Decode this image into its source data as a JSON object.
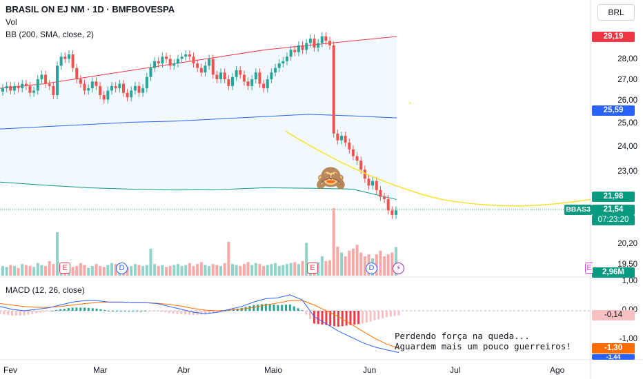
{
  "header": {
    "symbol_title": "BRASIL ON EJ NM · 1D · BMFBOVESPA",
    "vol_label": "Vol",
    "bb_label": "BB (200, SMA, close, 2)",
    "currency": "BRL"
  },
  "macd_label": "MACD (12, 26, close)",
  "annotation_lines": [
    "Perdendo força na queda...",
    "Aguardem mais um pouco guerreiros!"
  ],
  "emoji": "🙈",
  "price_axis_ticks": [
    "28,00",
    "27,00",
    "26,00",
    "25,00",
    "24,00",
    "23,00",
    "20,20",
    "19,50"
  ],
  "macd_axis_ticks": [
    "1,00",
    "0,00",
    "-1,00"
  ],
  "time_axis": [
    "Fev",
    "Mar",
    "Abr",
    "Maio",
    "Jun",
    "Jul",
    "Ago"
  ],
  "tags": {
    "bb_upper": "29,19",
    "bb_basis": "25,59",
    "bb_lower": "21,98",
    "symbol": "BBAS3",
    "last_price": "21,54",
    "countdown": "07:23:20",
    "volume": "2,96M",
    "macd_hist": "-0,14",
    "macd_signal": "-1,30",
    "macd_line": "-1,44"
  },
  "event_markers": {
    "earnings": "E",
    "dividend": "D",
    "split": "⚡"
  },
  "colors": {
    "up": "#26a69a",
    "down": "#ef5350",
    "bb_upper": "#f23645",
    "bb_basis": "#2962ff",
    "bb_lower": "#089981",
    "bb_fill": "#2196f3",
    "macd_line": "#2962ff",
    "signal_line": "#ff6d00",
    "projection": "#f7e22a"
  },
  "chart_data": [
    {
      "type": "candlestick",
      "title": "BRASIL ON EJ NM · 1D · BMFBOVESPA",
      "x_ticks": [
        "Fev",
        "Mar",
        "Abr",
        "Maio",
        "Jun",
        "Jul",
        "Ago"
      ],
      "ylim": [
        20.5,
        29.5
      ],
      "ohlc_close": [
        26.9,
        27.0,
        26.8,
        27.0,
        26.9,
        27.1,
        27.0,
        26.7,
        26.8,
        27.3,
        27.5,
        27.1,
        27.0,
        26.6,
        27.9,
        28.3,
        28.2,
        28.4,
        27.8,
        27.3,
        27.1,
        26.8,
        26.9,
        27.2,
        27.0,
        26.6,
        26.4,
        26.8,
        27.0,
        26.9,
        27.1,
        26.7,
        26.5,
        26.8,
        27.0,
        26.7,
        26.9,
        27.4,
        27.8,
        28.1,
        28.0,
        28.3,
        28.2,
        27.9,
        28.0,
        28.2,
        28.3,
        28.4,
        28.3,
        28.0,
        27.8,
        27.6,
        27.9,
        28.2,
        27.5,
        27.3,
        27.6,
        27.3,
        27.0,
        27.4,
        27.7,
        27.5,
        27.2,
        27.0,
        27.3,
        27.6,
        27.1,
        26.9,
        27.3,
        27.6,
        27.8,
        28.0,
        28.1,
        28.3,
        28.6,
        28.5,
        28.8,
        28.6,
        28.9,
        29.1,
        28.7,
        28.9,
        29.2,
        29.0,
        28.8,
        24.9,
        24.6,
        24.8,
        24.5,
        24.2,
        23.9,
        23.7,
        23.3,
        22.9,
        22.6,
        22.8,
        22.4,
        22.1,
        22.0,
        21.5,
        21.3,
        21.5
      ],
      "bollinger": {
        "upper": [
          26.9,
          27.1,
          27.4,
          27.7,
          28.0,
          28.3,
          28.6,
          28.8,
          29.0,
          29.19
        ],
        "basis": [
          25.1,
          25.2,
          25.3,
          25.4,
          25.45,
          25.55,
          25.65,
          25.75,
          25.68,
          25.59
        ],
        "lower": [
          22.75,
          22.62,
          22.5,
          22.44,
          22.4,
          22.42,
          22.5,
          22.48,
          22.44,
          21.98
        ]
      },
      "projection_curve": [
        25.0,
        24.2,
        23.5,
        22.9,
        22.4,
        22.0,
        21.8,
        21.7,
        21.7,
        21.8,
        21.98
      ]
    },
    {
      "type": "bar",
      "title": "Vol",
      "last_value": "2,96M",
      "values": [
        1.0,
        0.9,
        1.1,
        1.0,
        0.8,
        1.2,
        1.1,
        1.0,
        0.9,
        1.3,
        1.1,
        1.0,
        1.5,
        1.2,
        4.5,
        1.0,
        1.2,
        1.1,
        0.9,
        1.0,
        1.3,
        1.1,
        0.8,
        1.0,
        1.2,
        1.0,
        0.9,
        1.1,
        1.3,
        1.2,
        1.0,
        1.1,
        0.9,
        1.0,
        1.2,
        1.1,
        1.0,
        1.1,
        2.8,
        1.2,
        1.0,
        1.1,
        0.9,
        1.0,
        1.1,
        1.2,
        1.0,
        1.1,
        1.3,
        1.0,
        1.2,
        1.4,
        1.1,
        1.0,
        1.2,
        1.1,
        1.0,
        1.3,
        3.5,
        1.2,
        1.1,
        1.0,
        1.2,
        1.4,
        1.1,
        1.3,
        1.2,
        1.0,
        1.1,
        1.2,
        1.3,
        1.0,
        1.1,
        1.2,
        1.3,
        1.4,
        1.2,
        1.5,
        3.4,
        1.3,
        1.2,
        1.4,
        2.0,
        1.5,
        1.6,
        7.0,
        3.0,
        2.4,
        2.0,
        2.6,
        2.8,
        3.2,
        2.4,
        2.0,
        2.2,
        1.8,
        2.2,
        2.6,
        2.0,
        2.2,
        2.4,
        2.96
      ]
    },
    {
      "type": "line",
      "title": "MACD (12, 26, close)",
      "ylim": [
        -1.5,
        1.0
      ],
      "series": [
        {
          "name": "MACD",
          "values": [
            0.15,
            0.05,
            0.0,
            0.05,
            0.1,
            0.2,
            0.3,
            0.35,
            0.35,
            0.3,
            0.3,
            0.28,
            0.28,
            0.25,
            0.15,
            0.05,
            -0.05,
            -0.1,
            -0.05,
            0.05,
            0.15,
            0.3,
            0.42,
            0.45,
            0.55,
            0.38,
            -0.2,
            -0.45,
            -0.7,
            -0.9,
            -1.1,
            -1.25,
            -1.35,
            -1.44
          ]
        },
        {
          "name": "Signal",
          "values": [
            0.25,
            0.2,
            0.15,
            0.12,
            0.12,
            0.15,
            0.2,
            0.25,
            0.28,
            0.3,
            0.3,
            0.28,
            0.28,
            0.26,
            0.22,
            0.16,
            0.08,
            0.02,
            0.0,
            0.02,
            0.06,
            0.12,
            0.2,
            0.27,
            0.35,
            0.36,
            0.2,
            0.0,
            -0.2,
            -0.45,
            -0.7,
            -0.95,
            -1.15,
            -1.3
          ]
        }
      ],
      "histogram_last": -0.14
    }
  ]
}
